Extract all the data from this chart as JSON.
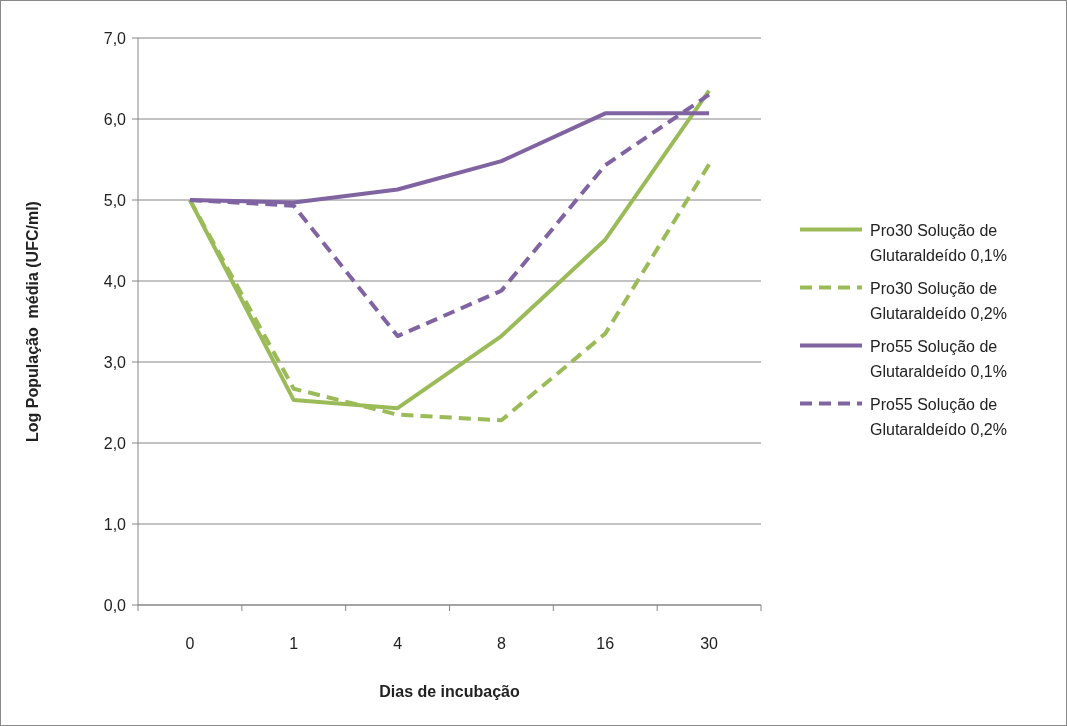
{
  "chart_data": {
    "type": "line",
    "xlabel": "Dias de incubação",
    "ylabel": "Log População  média (UFC/ml)",
    "categories": [
      "0",
      "1",
      "4",
      "8",
      "16",
      "30"
    ],
    "ylim": [
      0,
      7
    ],
    "yticks": [
      {
        "value": 0,
        "label": "0,0"
      },
      {
        "value": 1,
        "label": "1,0"
      },
      {
        "value": 2,
        "label": "2,0"
      },
      {
        "value": 3,
        "label": "3,0"
      },
      {
        "value": 4,
        "label": "4,0"
      },
      {
        "value": 5,
        "label": "5,0"
      },
      {
        "value": 6,
        "label": "6,0"
      },
      {
        "value": 7,
        "label": "7,0"
      }
    ],
    "grid": "y",
    "legend": "right",
    "marker": "none",
    "series": [
      {
        "name": "Pro30 Solução de Glutaraldeído 0,1%",
        "color": "#9bbb59",
        "line_style": "solid",
        "values": [
          5.0,
          2.53,
          2.43,
          3.32,
          4.51,
          6.35
        ]
      },
      {
        "name": "Pro30 Solução de Glutaraldeído 0,2%",
        "color": "#9bbb59",
        "line_style": "dashed",
        "values": [
          5.0,
          2.67,
          2.35,
          2.28,
          3.35,
          5.44
        ]
      },
      {
        "name": "Pro55 Solução de Glutaraldeído 0,1%",
        "color": "#8064a2",
        "line_style": "solid",
        "values": [
          5.0,
          4.97,
          5.13,
          5.48,
          6.07,
          6.07
        ]
      },
      {
        "name": "Pro55 Solução de Glutaraldeído 0,2%",
        "color": "#8064a2",
        "line_style": "dashed",
        "values": [
          5.0,
          4.93,
          3.32,
          3.88,
          5.43,
          6.3
        ]
      }
    ]
  }
}
